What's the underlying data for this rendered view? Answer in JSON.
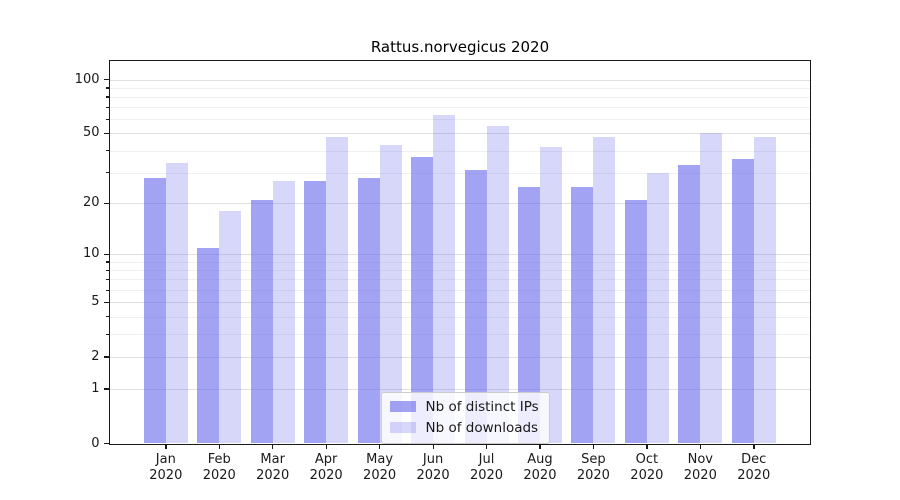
{
  "figure": {
    "background": "#ffffff",
    "text_color": "#1a1a1a"
  },
  "chart_data": {
    "type": "bar",
    "title": "Rattus.norvegicus 2020",
    "categories": [
      "Jan",
      "Feb",
      "Mar",
      "Apr",
      "May",
      "Jun",
      "Jul",
      "Aug",
      "Sep",
      "Oct",
      "Nov",
      "Dec"
    ],
    "year_label": "2020",
    "series": [
      {
        "name": "Nb of distinct IPs",
        "color": "rgba(102,102,235,0.60)",
        "values": [
          28,
          11,
          21,
          27,
          28,
          37,
          31,
          25,
          25,
          21,
          33,
          36
        ]
      },
      {
        "name": "Nb of downloads",
        "color": "rgba(102,102,235,0.26)",
        "values": [
          34,
          18,
          27,
          48,
          43,
          63,
          55,
          42,
          48,
          30,
          50,
          48
        ]
      }
    ],
    "xlabel": "",
    "ylabel": "",
    "yscale": "log1p",
    "ylim": [
      0,
      128
    ],
    "yticks": [
      0,
      1,
      2,
      5,
      10,
      20,
      50,
      100
    ],
    "yticks_minor": [
      3,
      4,
      6,
      7,
      8,
      9,
      30,
      40,
      60,
      70,
      80,
      90
    ],
    "grid": true,
    "legend_position": "lower center",
    "bar_color_dark_hex": "#a3a3f0",
    "bar_color_light_hex": "#d8d8fa"
  }
}
